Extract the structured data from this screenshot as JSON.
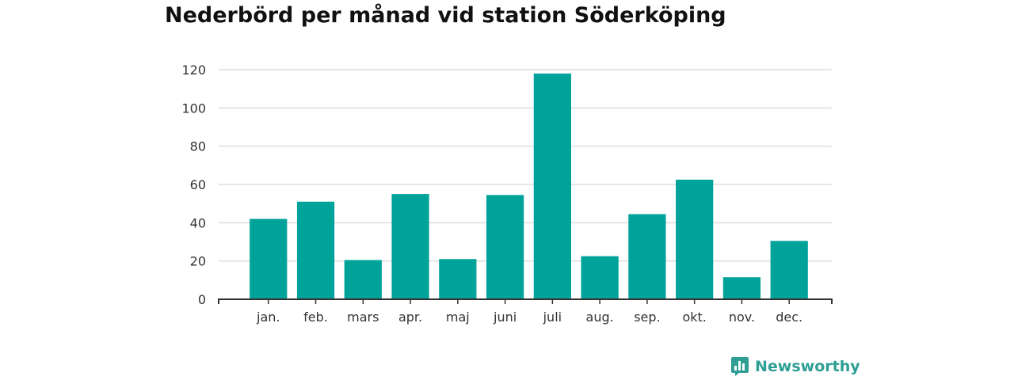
{
  "chart_data": {
    "type": "bar",
    "title": "Nederbörd per månad vid station Söderköping",
    "xlabel": "",
    "ylabel": "",
    "categories": [
      "jan.",
      "feb.",
      "mars",
      "apr.",
      "maj",
      "juni",
      "juli",
      "aug.",
      "sep.",
      "okt.",
      "nov.",
      "dec."
    ],
    "values": [
      42,
      51,
      20.5,
      55,
      21,
      54.5,
      118,
      22.5,
      44.5,
      62.5,
      11.5,
      30.5
    ],
    "ylim": [
      0,
      120
    ],
    "yticks": [
      0,
      20,
      40,
      60,
      80,
      100,
      120
    ],
    "grid": true,
    "legend": "none",
    "bar_color": "#00a39a",
    "grid_color": "#dddddd",
    "axis_color": "#333333"
  },
  "brand": {
    "name": "Newsworthy",
    "color": "#2f9f94",
    "icon": "newsworthy-logo-icon"
  }
}
